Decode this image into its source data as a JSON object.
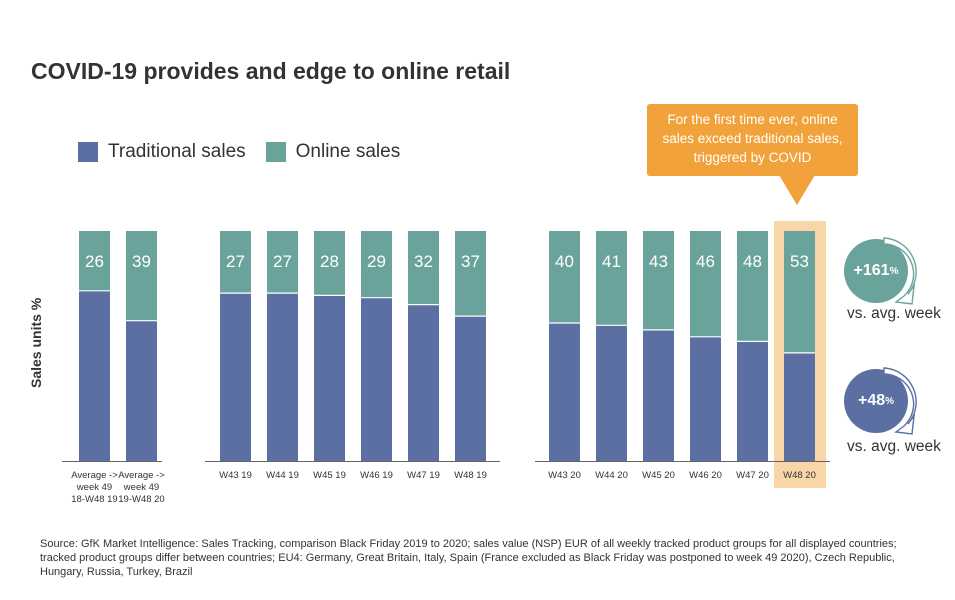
{
  "title": "COVID-19 provides and edge to online retail",
  "legend": [
    {
      "label": "Traditional sales",
      "color": "#5b6fa3"
    },
    {
      "label": "Online sales",
      "color": "#6aa39b"
    }
  ],
  "callout": {
    "text": "For the first time ever, online sales exceed traditional sales, triggered by COVID",
    "color": "#f2a23a"
  },
  "highlight_color": "#f8d6a8",
  "badges": [
    {
      "value": "+161",
      "unit": "%",
      "caption": "vs. avg. week",
      "color": "#6aa39b"
    },
    {
      "value": "+48",
      "unit": "%",
      "caption": "vs. avg. week",
      "color": "#5b6fa3"
    }
  ],
  "chart_data": {
    "type": "bar",
    "stacked": true,
    "ylabel": "Sales units %",
    "ylim": [
      0,
      100
    ],
    "categories": [
      "Average -> week 49 18-W48 19",
      "Average -> week 49 19-W48 20",
      "W43 19",
      "W44 19",
      "W45 19",
      "W46 19",
      "W47 19",
      "W48 19",
      "W43 20",
      "W44 20",
      "W45 20",
      "W46 20",
      "W47 20",
      "W48 20"
    ],
    "tick_labels": [
      [
        "Average ->",
        "week 49",
        "18-W48 19"
      ],
      [
        "Average ->",
        "week 49",
        "19-W48 20"
      ],
      [
        "W43 19"
      ],
      [
        "W44 19"
      ],
      [
        "W45 19"
      ],
      [
        "W46 19"
      ],
      [
        "W47 19"
      ],
      [
        "W48 19"
      ],
      [
        "W43 20"
      ],
      [
        "W44 20"
      ],
      [
        "W45 20"
      ],
      [
        "W46 20"
      ],
      [
        "W47 20"
      ],
      [
        "W48 20"
      ]
    ],
    "groups": [
      2,
      6,
      6
    ],
    "highlight_category": "W48 20",
    "series": [
      {
        "name": "Traditional sales",
        "values": [
          74,
          61,
          73,
          73,
          72,
          71,
          68,
          63,
          60,
          59,
          57,
          54,
          52,
          47
        ],
        "color": "#5b6fa3"
      },
      {
        "name": "Online sales",
        "values": [
          26,
          39,
          27,
          27,
          28,
          29,
          32,
          37,
          40,
          41,
          43,
          46,
          48,
          53
        ],
        "color": "#6aa39b"
      }
    ]
  },
  "source": "Source: GfK Market Intelligence: Sales Tracking, comparison Black Friday 2019 to 2020; sales value (NSP) EUR of all weekly tracked product groups for all displayed countries; tracked product groups differ between countries; EU4: Germany, Great Britain, Italy, Spain (France excluded as Black Friday was postponed to week 49 2020), Czech Republic, Hungary, Russia, Turkey, Brazil"
}
